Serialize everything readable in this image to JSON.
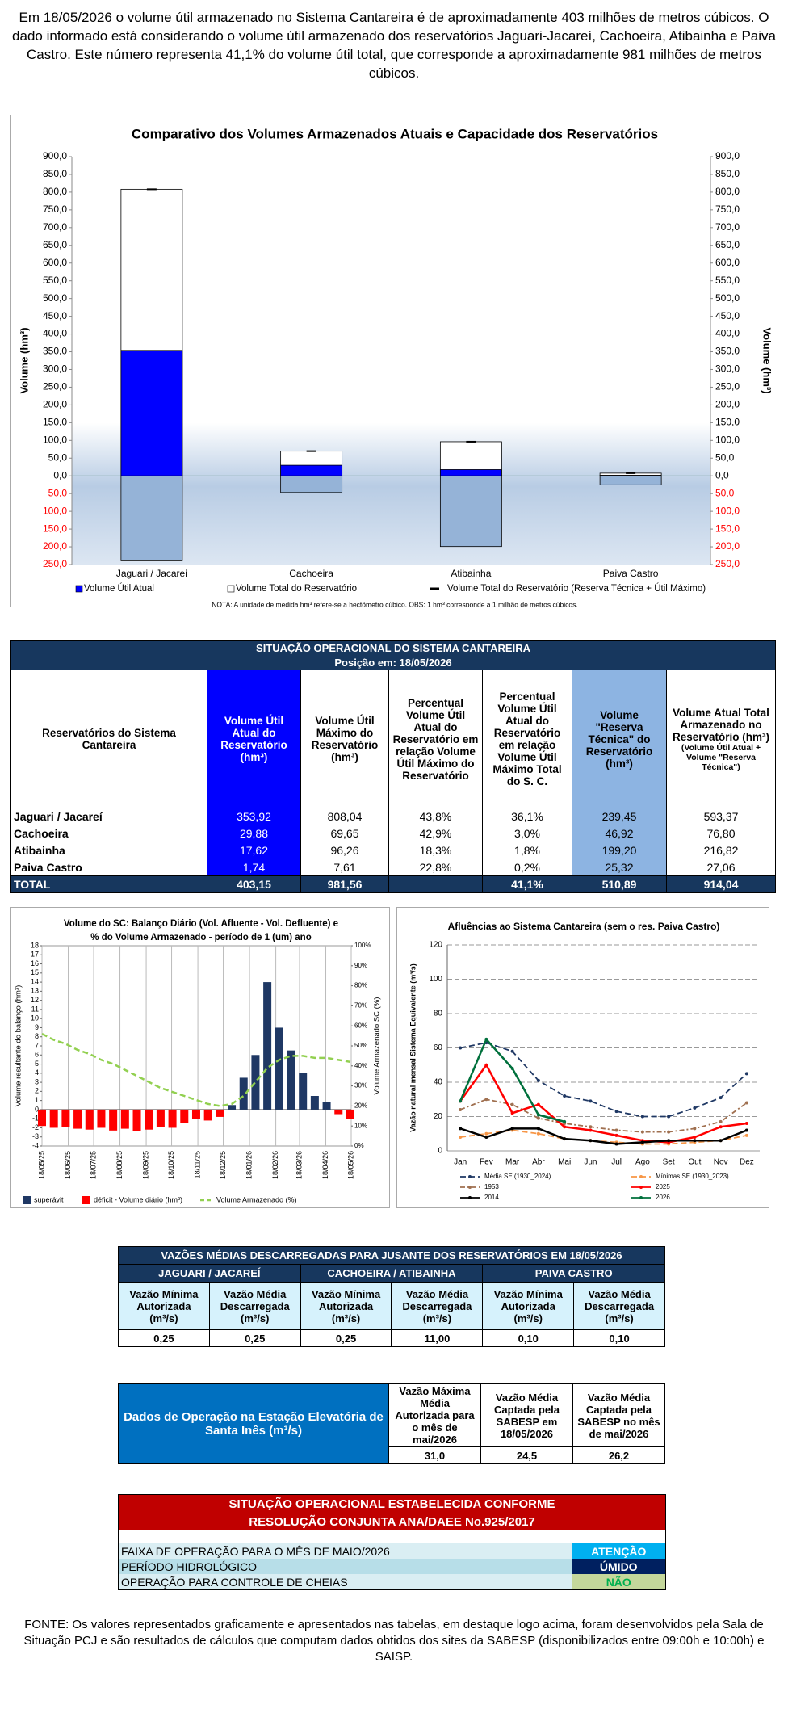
{
  "header": {
    "text": "Em 18/05/2026 o volume útil armazenado no Sistema Cantareira é de aproximadamente 403 milhões de metros cúbicos. O dado informado está considerando o volume útil armazenado dos reservatórios Jaguari-Jacareí, Cachoeira, Atibainha e Paiva Castro. Este número representa 41,1% do volume útil total, que corresponde a aproximadamente 981 milhões de metros cúbicos."
  },
  "chart_data": [
    {
      "type": "bar",
      "title": "Comparativo dos Volumes Armazenados Atuais e Capacidade dos Reservatórios",
      "y_label": "Volume (hm³)",
      "y2_label": "Volume (hm³)",
      "categories": [
        "Jaguari / Jacarei",
        "Cachoeira",
        "Atibainha",
        "Paiva Castro"
      ],
      "series": [
        {
          "name": "Volume Útil Atual",
          "color": "#0000ff",
          "values": [
            353.92,
            29.88,
            17.62,
            1.74
          ]
        },
        {
          "name": "Volume Total do Reservatório",
          "color": "#ffffff",
          "values": [
            808.04,
            69.65,
            96.26,
            7.61
          ]
        },
        {
          "name": "Volume Total do Reservatório (Reserva Técnica + Útil Máximo)",
          "color": "#000000",
          "values": [
            808.04,
            69.65,
            96.26,
            7.61
          ]
        }
      ],
      "reserve": {
        "color": "#95b3d7",
        "values": [
          -239.45,
          -46.92,
          -199.2,
          -25.32
        ]
      },
      "ylim": [
        -250,
        900
      ],
      "yticks": [
        {
          "value": 900,
          "label": "900,0"
        },
        {
          "value": 850,
          "label": "850,0"
        },
        {
          "value": 800,
          "label": "800,0"
        },
        {
          "value": 750,
          "label": "750,0"
        },
        {
          "value": 700,
          "label": "700,0"
        },
        {
          "value": 650,
          "label": "650,0"
        },
        {
          "value": 600,
          "label": "600,0"
        },
        {
          "value": 550,
          "label": "550,0"
        },
        {
          "value": 500,
          "label": "500,0"
        },
        {
          "value": 450,
          "label": "450,0"
        },
        {
          "value": 400,
          "label": "400,0"
        },
        {
          "value": 350,
          "label": "350,0"
        },
        {
          "value": 300,
          "label": "300,0"
        },
        {
          "value": 250,
          "label": "250,0"
        },
        {
          "value": 200,
          "label": "200,0"
        },
        {
          "value": 150,
          "label": "150,0"
        },
        {
          "value": 100,
          "label": "100,0"
        },
        {
          "value": 50,
          "label": "50,0"
        },
        {
          "value": 0,
          "label": "0,0"
        },
        {
          "value": -50,
          "label": "50,0"
        },
        {
          "value": -100,
          "label": "100,0"
        },
        {
          "value": -150,
          "label": "150,0"
        },
        {
          "value": -200,
          "label": "200,0"
        },
        {
          "value": -250,
          "label": "250,0"
        }
      ],
      "y2lim": [
        -250,
        900
      ],
      "y2ticks": [
        {
          "value": 900,
          "label": "900,0"
        },
        {
          "value": 850,
          "label": "850,0"
        },
        {
          "value": 800,
          "label": "800,0"
        },
        {
          "value": 750,
          "label": "750,0"
        },
        {
          "value": 700,
          "label": "700,0"
        },
        {
          "value": 650,
          "label": "650,0"
        },
        {
          "value": 600,
          "label": "600,0"
        },
        {
          "value": 550,
          "label": "550,0"
        },
        {
          "value": 500,
          "label": "500,0"
        },
        {
          "value": 450,
          "label": "450,0"
        },
        {
          "value": 400,
          "label": "400,0"
        },
        {
          "value": 350,
          "label": "350,0"
        },
        {
          "value": 300,
          "label": "300,0"
        },
        {
          "value": 250,
          "label": "250,0"
        },
        {
          "value": 200,
          "label": "200,0"
        },
        {
          "value": 150,
          "label": "150,0"
        },
        {
          "value": 100,
          "label": "100,0"
        },
        {
          "value": 50,
          "label": "50,0"
        },
        {
          "value": 0,
          "label": "0,0"
        },
        {
          "value": -50,
          "label": "50,0"
        },
        {
          "value": -100,
          "label": "100,0"
        },
        {
          "value": -150,
          "label": "150,0"
        },
        {
          "value": -200,
          "label": "200,0"
        },
        {
          "value": -250,
          "label": "250,0"
        }
      ],
      "negative_color": "#ff0000",
      "note": "NOTA: A unidade de medida hm³ refere-se a hectômetro cúbico. OBS: 1 hm³ corresponde a 1 milhão de metros cúbicos."
    },
    {
      "type": "bar-line",
      "title": [
        "Volume do SC: Balanço Diário (Vol. Afluente - Vol. Defluente) e",
        "% do Volume Armazenado - período de 1 (um) ano"
      ],
      "y_label": "Volume resultante do balanço (hm³)",
      "y2_label": "Volume Armazenado SC (%)",
      "x": [
        "18/05/25",
        "01/06/25",
        "15/06/25",
        "29/06/25",
        "13/07/25",
        "27/07/25",
        "10/08/25",
        "24/08/25",
        "07/09/25",
        "21/09/25",
        "05/10/25",
        "19/10/25",
        "02/11/25",
        "16/11/25",
        "30/11/25",
        "14/12/25",
        "28/12/25",
        "11/01/26",
        "25/01/26",
        "08/02/26",
        "22/02/26",
        "08/03/26",
        "22/03/26",
        "05/04/26",
        "19/04/26",
        "03/05/26",
        "17/05/26"
      ],
      "series": [
        {
          "name": "superávit",
          "color": "#1f3864",
          "values": [
            null,
            null,
            null,
            null,
            null,
            null,
            null,
            null,
            null,
            null,
            null,
            null,
            null,
            null,
            null,
            null,
            0.5,
            3.5,
            6,
            14,
            9,
            6.5,
            4,
            1.5,
            0.8,
            null,
            null
          ]
        },
        {
          "name": "déficit - Volume diário (hm³)",
          "color": "#ff0000",
          "values": [
            -1.8,
            -2,
            -1.9,
            -2.1,
            -2.2,
            -2,
            -2.3,
            -2.1,
            -2.4,
            -2.2,
            -1.9,
            -2,
            -1.5,
            -1,
            -1.2,
            -0.8,
            null,
            null,
            null,
            null,
            null,
            null,
            null,
            null,
            null,
            -0.5,
            -1
          ]
        },
        {
          "name": "Volume Armazenado (%)",
          "color": "#92d050",
          "axis": "y2",
          "values": [
            56,
            53,
            51,
            48,
            46,
            43,
            41,
            38,
            35,
            32,
            29,
            27,
            25,
            23,
            21,
            20,
            21,
            25,
            32,
            39,
            43,
            45,
            45,
            44,
            44,
            43,
            42
          ]
        }
      ],
      "xlim": [
        "18/05/25",
        "18/05/26"
      ],
      "xticks": [
        "18/05/25",
        "18/06/25",
        "18/07/25",
        "18/08/25",
        "18/09/25",
        "18/10/25",
        "18/11/25",
        "18/12/25",
        "18/01/26",
        "18/02/26",
        "18/03/26",
        "18/04/26",
        "18/05/26"
      ],
      "ylim": [
        -4,
        18
      ],
      "yticks": [
        -4,
        -3,
        -2,
        -1,
        0,
        1,
        2,
        3,
        4,
        5,
        6,
        7,
        8,
        9,
        10,
        11,
        12,
        13,
        14,
        15,
        16,
        17,
        18
      ],
      "y2lim": [
        0,
        100
      ],
      "y2ticks": [
        {
          "value": 0,
          "label": "0%"
        },
        {
          "value": 10,
          "label": "10%"
        },
        {
          "value": 20,
          "label": "20%"
        },
        {
          "value": 30,
          "label": "30%"
        },
        {
          "value": 40,
          "label": "40%"
        },
        {
          "value": 50,
          "label": "50%"
        },
        {
          "value": 60,
          "label": "60%"
        },
        {
          "value": 70,
          "label": "70%"
        },
        {
          "value": 80,
          "label": "80%"
        },
        {
          "value": 90,
          "label": "90%"
        },
        {
          "value": 100,
          "label": "100%"
        }
      ],
      "grid": true
    },
    {
      "type": "line",
      "title": "Afluências ao Sistema Cantareira (sem o res. Paiva Castro)",
      "y_label": "Vazão natural mensal Sistema Equivalente (m³/s)",
      "categories": [
        "Jan",
        "Fev",
        "Mar",
        "Abr",
        "Mai",
        "Jun",
        "Jul",
        "Ago",
        "Set",
        "Out",
        "Nov",
        "Dez"
      ],
      "series": [
        {
          "name": "Média SE (1930_2024)",
          "color": "#1f3864",
          "style": "dashed",
          "values": [
            60,
            63,
            58,
            41,
            32,
            29,
            23,
            20,
            20,
            25,
            31,
            45
          ]
        },
        {
          "name": "Mínimas SE (1930_2023)",
          "color": "#f79646",
          "style": "dashed",
          "values": [
            8,
            10,
            12,
            10,
            7,
            6,
            5,
            4,
            4,
            5,
            6,
            9
          ]
        },
        {
          "name": "1953",
          "color": "#a07050",
          "style": "dashdot",
          "values": [
            24,
            30,
            27,
            19,
            16,
            14,
            12,
            11,
            11,
            13,
            17,
            28
          ]
        },
        {
          "name": "2025",
          "color": "#ff0000",
          "style": "solid",
          "values": [
            29,
            50,
            22,
            27,
            14,
            12,
            9,
            6,
            5,
            8,
            14,
            16
          ]
        },
        {
          "name": "2014",
          "color": "#000000",
          "style": "solid",
          "values": [
            13,
            8,
            13,
            13,
            7,
            6,
            4,
            5,
            6,
            6,
            6,
            12
          ]
        },
        {
          "name": "2026",
          "color": "#00703c",
          "style": "solid",
          "values": [
            29,
            65,
            48,
            21,
            17,
            null,
            null,
            null,
            null,
            null,
            null,
            null
          ]
        }
      ],
      "ylim": [
        0,
        120
      ],
      "yticks": [
        0,
        20,
        40,
        60,
        80,
        100,
        120
      ],
      "grid": true
    }
  ],
  "situacao_table": {
    "title": "SITUAÇÃO OPERACIONAL DO SISTEMA CANTAREIRA",
    "subtitle": "Posição em: 18/05/2026",
    "columns": [
      "Reservatórios do Sistema Cantareira",
      "Volume Útil Atual do Reservatório (hm³)",
      "Volume Útil Máximo do Reservatório (hm³)",
      "Percentual Volume Útil Atual do Reservatório em relação Volume Útil Máximo do Reservatório",
      "Percentual Volume Útil Atual do Reservatório em relação Volume Útil Máximo Total do S. C.",
      "Volume \"Reserva Técnica\" do Reservatório (hm³)",
      "Volume Atual Total Armazenado no Reservatório (hm³)"
    ],
    "column_note": "(Volume Útil Atual + Volume \"Reserva Técnica\")",
    "rows": [
      [
        "Jaguari / Jacareí",
        "353,92",
        "808,04",
        "43,8%",
        "36,1%",
        "239,45",
        "593,37"
      ],
      [
        "Cachoeira",
        "29,88",
        "69,65",
        "42,9%",
        "3,0%",
        "46,92",
        "76,80"
      ],
      [
        "Atibainha",
        "17,62",
        "96,26",
        "18,3%",
        "1,8%",
        "199,20",
        "216,82"
      ],
      [
        "Paiva Castro",
        "1,74",
        "7,61",
        "22,8%",
        "0,2%",
        "25,32",
        "27,06"
      ]
    ],
    "total": {
      "label": "TOTAL",
      "util": "403,15",
      "max": "981,56",
      "pct_total": "41,1%",
      "reserva": "510,89",
      "atual": "914,04"
    }
  },
  "vazoes_table": {
    "title": "VAZÕES MÉDIAS DESCARREGADAS PARA JUSANTE DOS RESERVATÓRIOS EM 18/05/2026",
    "groups": [
      "JAGUARI / JACAREÍ",
      "CACHOEIRA / ATIBAINHA",
      "PAIVA CASTRO"
    ],
    "columns": [
      "Vazão Mínima Autorizada (m³/s)",
      "Vazão Média Descarregada (m³/s)",
      "Vazão Mínima Autorizada (m³/s)",
      "Vazão Média Descarregada (m³/s)",
      "Vazão Mínima Autorizada (m³/s)",
      "Vazão Média Descarregada (m³/s)"
    ],
    "values": [
      "0,25",
      "0,25",
      "0,25",
      "11,00",
      "0,10",
      "0,10"
    ]
  },
  "santa_ines": {
    "label": "Dados de Operação na Estação Elevatória de Santa Inês (m³/s)",
    "columns": [
      "Vazão Máxima Média Autorizada para o mês de mai/2026",
      "Vazão Média Captada pela SABESP em 18/05/2026",
      "Vazão Média Captada pela SABESP no mês de mai/2026"
    ],
    "values": [
      "31,0",
      "24,5",
      "26,2"
    ]
  },
  "resolucao": {
    "title": [
      "SITUAÇÃO OPERACIONAL ESTABELECIDA CONFORME",
      "RESOLUÇÃO CONJUNTA ANA/DAEE No.925/2017"
    ],
    "rows": [
      {
        "label": "FAIXA DE OPERAÇÃO PARA O MÊS DE MAIO/2026",
        "status": "ATENÇÃO"
      },
      {
        "label": "PERÍODO HIDROLÓGICO",
        "status": "ÚMIDO"
      },
      {
        "label": "OPERAÇÃO PARA CONTROLE DE CHEIAS",
        "status": "NÃO"
      }
    ]
  },
  "fonte": "FONTE: Os valores representados graficamente e apresentados nas tabelas, em destaque logo acima, foram desenvolvidos pela Sala de Situação PCJ e são resultados de cálculos que computam dados obtidos dos sites da SABESP (disponibilizados entre 09:00h e 10:00h) e SAISP."
}
